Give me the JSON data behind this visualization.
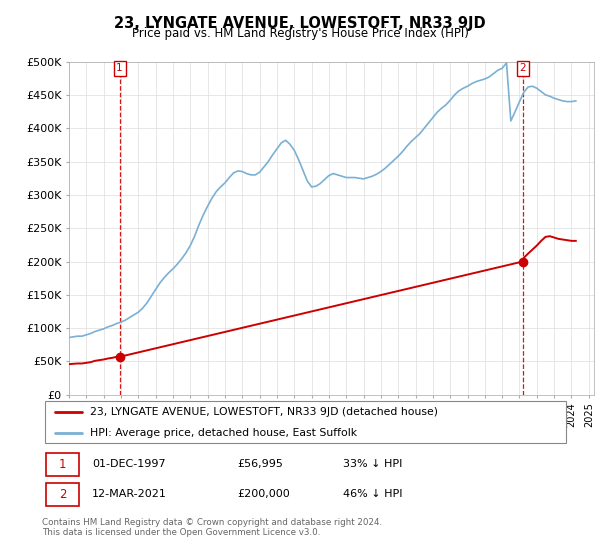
{
  "title": "23, LYNGATE AVENUE, LOWESTOFT, NR33 9JD",
  "subtitle": "Price paid vs. HM Land Registry's House Price Index (HPI)",
  "legend_line1": "23, LYNGATE AVENUE, LOWESTOFT, NR33 9JD (detached house)",
  "legend_line2": "HPI: Average price, detached house, East Suffolk",
  "note1_date": "01-DEC-1997",
  "note1_price": "£56,995",
  "note1_hpi": "33% ↓ HPI",
  "note2_date": "12-MAR-2021",
  "note2_price": "£200,000",
  "note2_hpi": "46% ↓ HPI",
  "footer": "Contains HM Land Registry data © Crown copyright and database right 2024.\nThis data is licensed under the Open Government Licence v3.0.",
  "sale_color": "#cc0000",
  "hpi_color": "#7ab0d4",
  "marker_color": "#cc0000",
  "sale_years": [
    1997.92,
    2021.19
  ],
  "sale_prices": [
    56995,
    200000
  ],
  "ylim": [
    0,
    500000
  ],
  "yticks": [
    0,
    50000,
    100000,
    150000,
    200000,
    250000,
    300000,
    350000,
    400000,
    450000,
    500000
  ],
  "ytick_labels": [
    "£0",
    "£50K",
    "£100K",
    "£150K",
    "£200K",
    "£250K",
    "£300K",
    "£350K",
    "£400K",
    "£450K",
    "£500K"
  ],
  "hpi_years": [
    1995.0,
    1995.25,
    1995.5,
    1995.75,
    1996.0,
    1996.25,
    1996.5,
    1996.75,
    1997.0,
    1997.25,
    1997.5,
    1997.75,
    1998.0,
    1998.25,
    1998.5,
    1998.75,
    1999.0,
    1999.25,
    1999.5,
    1999.75,
    2000.0,
    2000.25,
    2000.5,
    2000.75,
    2001.0,
    2001.25,
    2001.5,
    2001.75,
    2002.0,
    2002.25,
    2002.5,
    2002.75,
    2003.0,
    2003.25,
    2003.5,
    2003.75,
    2004.0,
    2004.25,
    2004.5,
    2004.75,
    2005.0,
    2005.25,
    2005.5,
    2005.75,
    2006.0,
    2006.25,
    2006.5,
    2006.75,
    2007.0,
    2007.25,
    2007.5,
    2007.75,
    2008.0,
    2008.25,
    2008.5,
    2008.75,
    2009.0,
    2009.25,
    2009.5,
    2009.75,
    2010.0,
    2010.25,
    2010.5,
    2010.75,
    2011.0,
    2011.25,
    2011.5,
    2011.75,
    2012.0,
    2012.25,
    2012.5,
    2012.75,
    2013.0,
    2013.25,
    2013.5,
    2013.75,
    2014.0,
    2014.25,
    2014.5,
    2014.75,
    2015.0,
    2015.25,
    2015.5,
    2015.75,
    2016.0,
    2016.25,
    2016.5,
    2016.75,
    2017.0,
    2017.25,
    2017.5,
    2017.75,
    2018.0,
    2018.25,
    2018.5,
    2018.75,
    2019.0,
    2019.25,
    2019.5,
    2019.75,
    2020.0,
    2020.25,
    2020.5,
    2020.75,
    2021.0,
    2021.25,
    2021.5,
    2021.75,
    2022.0,
    2022.25,
    2022.5,
    2022.75,
    2023.0,
    2023.25,
    2023.5,
    2023.75,
    2024.0,
    2024.25
  ],
  "hpi_vals": [
    86000,
    87000,
    88000,
    88000,
    90000,
    92000,
    95000,
    97000,
    99000,
    102000,
    104000,
    107000,
    109000,
    112000,
    116000,
    120000,
    124000,
    130000,
    138000,
    148000,
    158000,
    168000,
    176000,
    183000,
    189000,
    196000,
    204000,
    213000,
    224000,
    238000,
    255000,
    270000,
    283000,
    295000,
    305000,
    312000,
    318000,
    326000,
    333000,
    336000,
    335000,
    332000,
    330000,
    330000,
    334000,
    342000,
    350000,
    360000,
    369000,
    378000,
    382000,
    376000,
    367000,
    353000,
    337000,
    321000,
    312000,
    313000,
    317000,
    323000,
    329000,
    332000,
    330000,
    328000,
    326000,
    326000,
    326000,
    325000,
    324000,
    326000,
    328000,
    331000,
    335000,
    340000,
    346000,
    352000,
    358000,
    365000,
    373000,
    380000,
    386000,
    392000,
    400000,
    408000,
    416000,
    424000,
    430000,
    435000,
    442000,
    450000,
    456000,
    460000,
    463000,
    467000,
    470000,
    472000,
    474000,
    477000,
    482000,
    487000,
    490000,
    498000,
    411000,
    425000,
    440000,
    454000,
    462000,
    463000,
    460000,
    455000,
    450000,
    448000,
    445000,
    443000,
    441000,
    440000,
    440000,
    441000
  ],
  "red_years": [
    1995.0,
    1995.25,
    1995.5,
    1995.75,
    1996.0,
    1996.25,
    1996.5,
    1996.75,
    1997.0,
    1997.25,
    1997.5,
    1997.75,
    1997.92,
    2021.19,
    2021.25,
    2021.5,
    2021.75,
    2022.0,
    2022.25,
    2022.5,
    2022.75,
    2023.0,
    2023.25,
    2023.5,
    2023.75,
    2024.0,
    2024.25
  ],
  "red_vals": [
    46000,
    46500,
    47000,
    47000,
    48000,
    49000,
    51000,
    52000,
    53000,
    54500,
    55500,
    57000,
    56995,
    200000,
    205500,
    212000,
    218000,
    224000,
    231000,
    237000,
    238000,
    236000,
    234000,
    233000,
    232000,
    231000,
    231000
  ]
}
